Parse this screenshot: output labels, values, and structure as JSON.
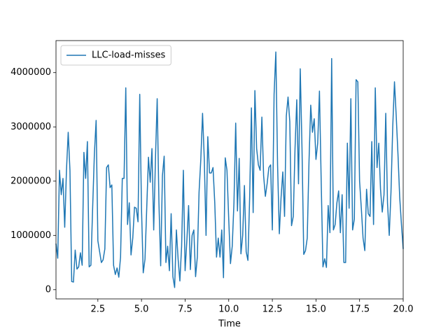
{
  "chart_data": {
    "type": "line",
    "xlabel": "Time",
    "x": [
      0.1,
      0.2,
      0.3,
      0.4,
      0.5,
      0.6,
      0.7,
      0.8,
      0.9,
      1.0,
      1.1,
      1.2,
      1.3,
      1.4,
      1.5,
      1.6,
      1.7,
      1.8,
      1.9,
      2.0,
      2.1,
      2.2,
      2.3,
      2.4,
      2.5,
      2.6,
      2.7,
      2.8,
      2.9,
      3.0,
      3.1,
      3.2,
      3.3,
      3.4,
      3.5,
      3.6,
      3.7,
      3.8,
      3.9,
      4.0,
      4.1,
      4.2,
      4.3,
      4.4,
      4.5,
      4.6,
      4.7,
      4.8,
      4.9,
      5.0,
      5.1,
      5.2,
      5.3,
      5.4,
      5.5,
      5.6,
      5.7,
      5.8,
      5.9,
      6.0,
      6.1,
      6.2,
      6.3,
      6.4,
      6.5,
      6.6,
      6.7,
      6.8,
      6.9,
      7.0,
      7.1,
      7.2,
      7.3,
      7.4,
      7.5,
      7.6,
      7.7,
      7.8,
      7.9,
      8.0,
      8.1,
      8.2,
      8.3,
      8.4,
      8.5,
      8.6,
      8.7,
      8.8,
      8.9,
      9.0,
      9.1,
      9.2,
      9.3,
      9.4,
      9.5,
      9.6,
      9.7,
      9.8,
      9.9,
      10.0,
      10.1,
      10.2,
      10.3,
      10.4,
      10.5,
      10.6,
      10.7,
      10.8,
      10.9,
      11.0,
      11.1,
      11.2,
      11.3,
      11.4,
      11.5,
      11.6,
      11.7,
      11.8,
      11.9,
      12.0,
      12.1,
      12.2,
      12.3,
      12.4,
      12.5,
      12.6,
      12.7,
      12.8,
      12.9,
      13.0,
      13.1,
      13.2,
      13.3,
      13.4,
      13.5,
      13.6,
      13.7,
      13.8,
      13.9,
      14.0,
      14.1,
      14.2,
      14.3,
      14.4,
      14.5,
      14.6,
      14.7,
      14.8,
      14.9,
      15.0,
      15.1,
      15.2,
      15.3,
      15.4,
      15.5,
      15.6,
      15.7,
      15.8,
      15.9,
      16.0,
      16.1,
      16.2,
      16.3,
      16.4,
      16.5,
      16.6,
      16.7,
      16.8,
      16.9,
      17.0,
      17.1,
      17.2,
      17.3,
      17.4,
      17.5,
      17.6,
      17.7,
      17.8,
      17.9,
      18.0,
      18.1,
      18.2,
      18.3,
      18.4,
      18.5,
      18.6,
      18.7,
      18.8,
      18.9,
      19.0,
      19.1,
      19.2,
      19.3,
      19.4,
      19.5,
      19.6,
      19.7,
      19.8,
      19.9,
      20.0
    ],
    "series": [
      {
        "name": "LLC-load-misses",
        "color": "#1f77b4",
        "values": [
          850000,
          580000,
          2200000,
          1750000,
          2050000,
          1150000,
          2200000,
          2900000,
          2200000,
          150000,
          140000,
          730000,
          380000,
          420000,
          680000,
          450000,
          2530000,
          2050000,
          2730000,
          420000,
          450000,
          1500000,
          2500000,
          3120000,
          900000,
          700000,
          500000,
          550000,
          750000,
          2250000,
          2300000,
          1880000,
          1930000,
          450000,
          280000,
          400000,
          230000,
          600000,
          2050000,
          2050000,
          3720000,
          1200000,
          1600000,
          640000,
          950000,
          1520000,
          1500000,
          1250000,
          3600000,
          1500000,
          310000,
          560000,
          1500000,
          2440000,
          1980000,
          2600000,
          1100000,
          2400000,
          3520000,
          1600000,
          440000,
          2100000,
          2460000,
          500000,
          800000,
          350000,
          1400000,
          240000,
          40000,
          1100000,
          560000,
          160000,
          800000,
          2200000,
          350000,
          900000,
          1550000,
          370000,
          1000000,
          1100000,
          240000,
          600000,
          1800000,
          2400000,
          3250000,
          2400000,
          1000000,
          2820000,
          2150000,
          2150000,
          2250000,
          1600000,
          600000,
          950000,
          600000,
          1100000,
          220000,
          2430000,
          2200000,
          1300000,
          480000,
          800000,
          1600000,
          3070000,
          1450000,
          2420000,
          660000,
          1000000,
          1920000,
          700000,
          540000,
          1700000,
          3350000,
          1420000,
          3670000,
          2600000,
          2300000,
          2200000,
          3180000,
          2100000,
          1720000,
          1950000,
          2250000,
          2300000,
          1100000,
          3600000,
          4380000,
          2300000,
          1030000,
          1700000,
          2170000,
          1350000,
          3200000,
          3550000,
          3100000,
          1180000,
          1350000,
          2600000,
          3500000,
          1950000,
          4070000,
          2600000,
          650000,
          720000,
          950000,
          2350000,
          3400000,
          2900000,
          3150000,
          2400000,
          2700000,
          3660000,
          2000000,
          420000,
          570000,
          410000,
          1550000,
          1050000,
          4260000,
          1100000,
          1200000,
          1600000,
          1820000,
          1050000,
          1750000,
          500000,
          500000,
          2700000,
          1500000,
          3520000,
          1100000,
          1300000,
          3870000,
          3830000,
          2000000,
          1500000,
          950000,
          720000,
          1850000,
          1400000,
          1350000,
          2730000,
          1200000,
          3720000,
          2250000,
          2700000,
          1850000,
          1430000,
          1750000,
          3250000,
          1600000,
          1000000,
          1800000,
          3000000,
          3830000,
          3200000,
          2500000,
          1700000,
          1200000,
          750000
        ]
      }
    ],
    "xlim": [
      0.1,
      20
    ],
    "xticks": [
      2.5,
      {
        "value": 5,
        "label": "5.0"
      },
      7.5,
      {
        "value": 10,
        "label": "10.0"
      },
      12.5,
      {
        "value": 15,
        "label": "15.0"
      },
      17.5,
      {
        "value": 20,
        "label": "20.0"
      }
    ],
    "ylim": [
      -170000,
      4590000
    ],
    "yticks": [
      0,
      1000000,
      2000000,
      3000000,
      4000000
    ],
    "legend": "upper left"
  }
}
